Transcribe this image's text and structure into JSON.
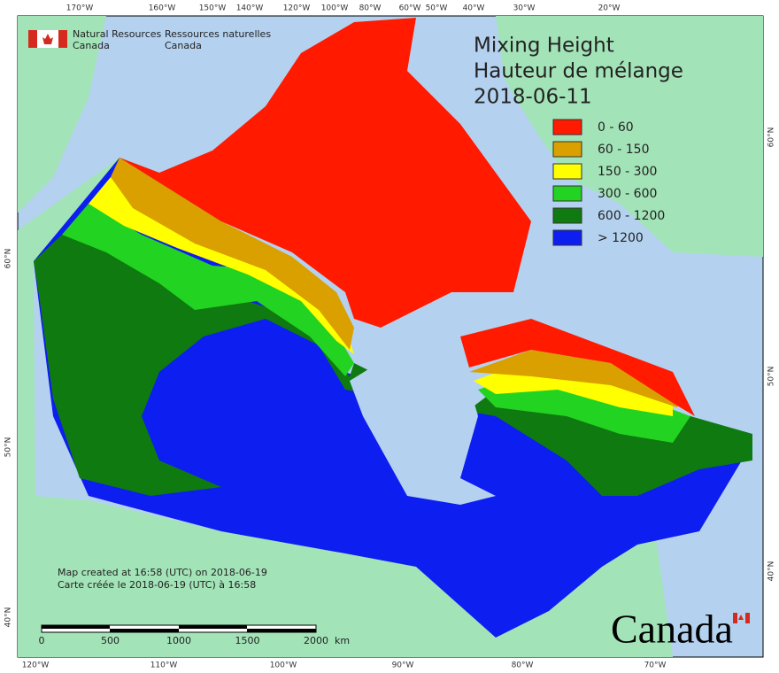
{
  "agency": {
    "en": [
      "Natural Resources",
      "Canada"
    ],
    "fr": [
      "Ressources naturelles",
      "Canada"
    ]
  },
  "header": {
    "title": "Mixing Height",
    "title_fr": "Hauteur de mélange",
    "date": "2018-06-11"
  },
  "legend": [
    {
      "label": "0 - 60",
      "color": "#ff1a00"
    },
    {
      "label": "60 - 150",
      "color": "#d9a000"
    },
    {
      "label": "150 - 300",
      "color": "#ffff00"
    },
    {
      "label": "300 - 600",
      "color": "#22d322"
    },
    {
      "label": "600 - 1200",
      "color": "#0f7a0f"
    },
    {
      "label": "> 1200",
      "color": "#0d1ef0"
    }
  ],
  "graticule": {
    "top": [
      "170°W",
      "160°W",
      "150°W",
      "140°W",
      "120°W",
      "100°W",
      "80°W",
      "60°W",
      "50°W",
      "40°W",
      "30°W",
      "20°W"
    ],
    "bottom": [
      "120°W",
      "110°W",
      "100°W",
      "90°W",
      "80°W",
      "70°W"
    ],
    "left": [
      "60°N",
      "50°N",
      "40°N"
    ],
    "right": [
      "60°N",
      "50°N",
      "40°N"
    ]
  },
  "credits": [
    "Map created at 16:58 (UTC) on 2018-06-19",
    "Carte créée le 2018-06-19 (UTC) à 16:58"
  ],
  "scale_bar": {
    "ticks": [
      "0",
      "500",
      "1000",
      "1500",
      "2000"
    ],
    "unit": "km"
  },
  "wordmark": "Canada"
}
